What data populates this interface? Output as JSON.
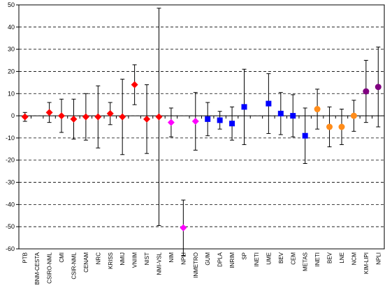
{
  "chart_data": {
    "type": "scatter",
    "title": "",
    "xlabel": "",
    "ylabel": "",
    "ylim": [
      -60,
      50
    ],
    "yticks": [
      -60,
      -50,
      -40,
      -30,
      -20,
      -10,
      0,
      10,
      20,
      30,
      40,
      50
    ],
    "grid": "horizontal dashed",
    "legend": "none",
    "categories": [
      "PTB",
      "BNM-CESTA",
      "CSIRO-NML",
      "CMI",
      "CSIR-NML",
      "CENAM",
      "NRC",
      "KRISS",
      "NMIJ",
      "VNIIM",
      "NIST",
      "NMI-VSL",
      "NIM",
      "NPLI",
      "INMETRO",
      "GUM",
      "DPLA",
      "INRIM",
      "SP",
      "INETI",
      "UME",
      "BEV",
      "CEM",
      "METAS",
      "INETI",
      "BEV",
      "LNE",
      "NCM",
      "KIM-LIPI",
      "NPLI"
    ],
    "points": [
      {
        "value": -0.5,
        "err": 2,
        "marker": "diamond",
        "color": "#ff0000"
      },
      {
        "value": null,
        "err": null,
        "marker": "none",
        "color": "#ff0000"
      },
      {
        "value": 1.5,
        "err": 4.5,
        "marker": "diamond",
        "color": "#ff0000"
      },
      {
        "value": 0,
        "err": 7.5,
        "marker": "diamond",
        "color": "#ff0000"
      },
      {
        "value": -1.5,
        "err": 9,
        "marker": "diamond",
        "color": "#ff0000"
      },
      {
        "value": -0.5,
        "err": 10.5,
        "marker": "diamond",
        "color": "#ff0000"
      },
      {
        "value": -0.5,
        "err": 14,
        "marker": "diamond",
        "color": "#ff0000"
      },
      {
        "value": 1,
        "err": 5,
        "marker": "diamond",
        "color": "#ff0000"
      },
      {
        "value": -0.5,
        "err": 17,
        "marker": "diamond",
        "color": "#ff0000"
      },
      {
        "value": 14,
        "err": 9,
        "marker": "diamond",
        "color": "#ff0000"
      },
      {
        "value": -1.5,
        "err": 15.5,
        "marker": "diamond",
        "color": "#ff0000"
      },
      {
        "value": -0.5,
        "err": 49,
        "marker": "diamond",
        "color": "#ff0000"
      },
      {
        "value": -3,
        "err": 6.5,
        "marker": "diamond",
        "color": "#ff00ff"
      },
      {
        "value": -50.5,
        "err": 12.5,
        "marker": "diamond",
        "color": "#ff00ff"
      },
      {
        "value": -2.5,
        "err": 13,
        "marker": "diamond",
        "color": "#ff00ff"
      },
      {
        "value": -1.5,
        "err": 7.5,
        "marker": "square",
        "color": "#0000ff"
      },
      {
        "value": -2,
        "err": 4,
        "marker": "square",
        "color": "#0000ff"
      },
      {
        "value": -3.5,
        "err": 7.5,
        "marker": "square",
        "color": "#0000ff"
      },
      {
        "value": 4,
        "err": 17,
        "marker": "square",
        "color": "#0000ff"
      },
      {
        "value": null,
        "err": null,
        "marker": "none",
        "color": "#0000ff"
      },
      {
        "value": 5.5,
        "err": 13.5,
        "marker": "square",
        "color": "#0000ff"
      },
      {
        "value": 1,
        "err": 9.5,
        "marker": "square",
        "color": "#0000ff"
      },
      {
        "value": 0,
        "err": 9.5,
        "marker": "square",
        "color": "#0000ff"
      },
      {
        "value": -9,
        "err": 12.5,
        "marker": "square",
        "color": "#0000ff"
      },
      {
        "value": 3,
        "err": 9,
        "marker": "circle",
        "color": "#ff8c1a"
      },
      {
        "value": -5,
        "err": 9,
        "marker": "circle",
        "color": "#ff8c1a"
      },
      {
        "value": -5,
        "err": 8,
        "marker": "circle",
        "color": "#ff8c1a"
      },
      {
        "value": 0,
        "err": 7,
        "marker": "circle",
        "color": "#ff8c1a"
      },
      {
        "value": 11,
        "err": 14,
        "marker": "circle",
        "color": "#800080"
      },
      {
        "value": 13,
        "err": 18,
        "marker": "circle",
        "color": "#800080"
      }
    ]
  }
}
